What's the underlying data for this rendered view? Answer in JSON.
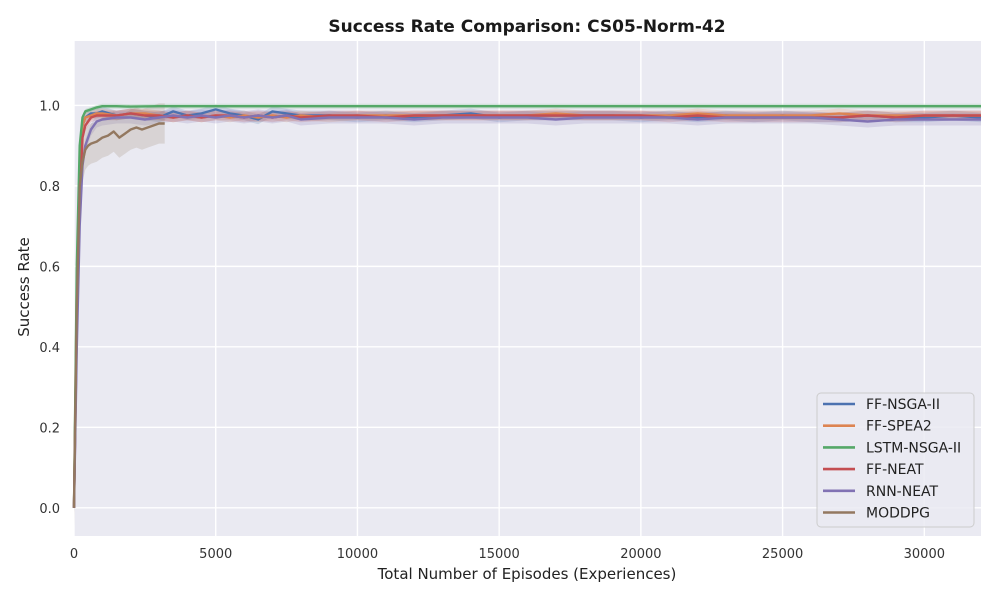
{
  "chart_data": {
    "type": "line",
    "title": "Success Rate Comparison: CS05-Norm-42",
    "xlabel": "Total Number of Episodes (Experiences)",
    "ylabel": "Success Rate",
    "xlim": [
      0,
      32000
    ],
    "ylim": [
      -0.07,
      1.16
    ],
    "xticks": [
      0,
      5000,
      10000,
      15000,
      20000,
      25000,
      30000
    ],
    "yticks": [
      0.0,
      0.2,
      0.4,
      0.6,
      0.8,
      1.0
    ],
    "xtick_labels": [
      "0",
      "5000",
      "10000",
      "15000",
      "20000",
      "25000",
      "30000"
    ],
    "ytick_labels": [
      "0.0",
      "0.2",
      "0.4",
      "0.6",
      "0.8",
      "1.0"
    ],
    "grid": true,
    "legend_position": "bottom-right",
    "series": [
      {
        "name": "FF-NSGA-II",
        "color": "#4c72b0",
        "x": [
          0,
          100,
          200,
          300,
          400,
          600,
          800,
          1000,
          1500,
          2000,
          2500,
          3000,
          3500,
          4000,
          4500,
          5000,
          5500,
          6000,
          6500,
          7000,
          7500,
          8000,
          9000,
          10000,
          11000,
          12000,
          13000,
          14000,
          15000,
          16000,
          17000,
          18000,
          19000,
          20000,
          21000,
          22000,
          23000,
          24000,
          25000,
          26000,
          27000,
          28000,
          29000,
          30000,
          31000,
          32000
        ],
        "y": [
          0.0,
          0.5,
          0.8,
          0.95,
          0.97,
          0.98,
          0.98,
          0.985,
          0.975,
          0.98,
          0.975,
          0.97,
          0.985,
          0.975,
          0.98,
          0.99,
          0.98,
          0.975,
          0.965,
          0.985,
          0.98,
          0.975,
          0.975,
          0.97,
          0.975,
          0.97,
          0.975,
          0.98,
          0.97,
          0.975,
          0.975,
          0.975,
          0.975,
          0.97,
          0.975,
          0.97,
          0.975,
          0.97,
          0.975,
          0.97,
          0.97,
          0.975,
          0.97,
          0.97,
          0.975,
          0.97
        ],
        "band": 0.012
      },
      {
        "name": "FF-SPEA2",
        "color": "#dd8452",
        "x": [
          0,
          100,
          200,
          300,
          400,
          600,
          800,
          1000,
          1500,
          2000,
          2500,
          3000,
          3500,
          4000,
          4500,
          5000,
          5500,
          6000,
          6500,
          7000,
          7500,
          8000,
          9000,
          10000,
          11000,
          12000,
          13000,
          14000,
          15000,
          16000,
          17000,
          18000,
          19000,
          20000,
          21000,
          22000,
          23000,
          24000,
          25000,
          26000,
          27000,
          28000,
          29000,
          30000,
          31000,
          32000
        ],
        "y": [
          0.0,
          0.55,
          0.85,
          0.95,
          0.97,
          0.975,
          0.98,
          0.98,
          0.975,
          0.98,
          0.98,
          0.975,
          0.97,
          0.975,
          0.97,
          0.975,
          0.97,
          0.975,
          0.97,
          0.975,
          0.97,
          0.975,
          0.97,
          0.975,
          0.975,
          0.975,
          0.975,
          0.975,
          0.975,
          0.975,
          0.98,
          0.975,
          0.975,
          0.975,
          0.975,
          0.98,
          0.975,
          0.975,
          0.975,
          0.975,
          0.98,
          0.975,
          0.975,
          0.975,
          0.975,
          0.975
        ],
        "band": 0.012
      },
      {
        "name": "LSTM-NSGA-II",
        "color": "#55a868",
        "x": [
          0,
          100,
          200,
          300,
          400,
          600,
          800,
          1000,
          1500,
          2000,
          3000,
          5000,
          10000,
          15000,
          20000,
          25000,
          30000,
          32000
        ],
        "y": [
          0.0,
          0.6,
          0.9,
          0.97,
          0.985,
          0.99,
          0.995,
          0.998,
          0.998,
          0.997,
          0.998,
          0.998,
          0.998,
          0.998,
          0.998,
          0.998,
          0.998,
          0.998
        ],
        "band": 0.006
      },
      {
        "name": "FF-NEAT",
        "color": "#c44e52",
        "x": [
          0,
          100,
          200,
          300,
          400,
          600,
          800,
          1000,
          1500,
          2000,
          2500,
          3000,
          3500,
          4000,
          4500,
          5000,
          5500,
          6000,
          6500,
          7000,
          7500,
          8000,
          9000,
          10000,
          11000,
          12000,
          13000,
          14000,
          15000,
          16000,
          17000,
          18000,
          19000,
          20000,
          21000,
          22000,
          23000,
          24000,
          25000,
          26000,
          27000,
          28000,
          29000,
          30000,
          31000,
          32000
        ],
        "y": [
          0.0,
          0.45,
          0.75,
          0.92,
          0.95,
          0.97,
          0.975,
          0.975,
          0.975,
          0.98,
          0.975,
          0.975,
          0.97,
          0.975,
          0.97,
          0.975,
          0.975,
          0.97,
          0.975,
          0.97,
          0.975,
          0.97,
          0.975,
          0.975,
          0.97,
          0.975,
          0.975,
          0.975,
          0.975,
          0.975,
          0.975,
          0.975,
          0.975,
          0.975,
          0.97,
          0.975,
          0.97,
          0.97,
          0.97,
          0.97,
          0.97,
          0.975,
          0.97,
          0.975,
          0.975,
          0.975
        ],
        "band": 0.012
      },
      {
        "name": "RNN-NEAT",
        "color": "#8172b3",
        "x": [
          0,
          100,
          200,
          300,
          400,
          600,
          800,
          1000,
          1500,
          2000,
          2500,
          3000,
          3500,
          4000,
          4500,
          5000,
          5500,
          6000,
          6500,
          7000,
          7500,
          8000,
          9000,
          10000,
          11000,
          12000,
          13000,
          14000,
          15000,
          16000,
          17000,
          18000,
          19000,
          20000,
          21000,
          22000,
          23000,
          24000,
          25000,
          26000,
          27000,
          28000,
          29000,
          30000,
          31000,
          32000
        ],
        "y": [
          0.0,
          0.4,
          0.7,
          0.85,
          0.9,
          0.94,
          0.96,
          0.965,
          0.97,
          0.97,
          0.965,
          0.97,
          0.975,
          0.97,
          0.975,
          0.97,
          0.975,
          0.97,
          0.975,
          0.97,
          0.975,
          0.965,
          0.97,
          0.97,
          0.97,
          0.965,
          0.97,
          0.97,
          0.97,
          0.97,
          0.965,
          0.97,
          0.97,
          0.97,
          0.97,
          0.965,
          0.97,
          0.97,
          0.97,
          0.97,
          0.965,
          0.96,
          0.965,
          0.965,
          0.965,
          0.965
        ],
        "band": 0.015
      },
      {
        "name": "MODDPG",
        "color": "#937860",
        "x": [
          0,
          100,
          200,
          300,
          400,
          500,
          600,
          800,
          1000,
          1200,
          1400,
          1600,
          1800,
          2000,
          2200,
          2400,
          2600,
          2800,
          3000,
          3200
        ],
        "y": [
          0.0,
          0.5,
          0.8,
          0.86,
          0.89,
          0.9,
          0.905,
          0.91,
          0.92,
          0.925,
          0.935,
          0.92,
          0.93,
          0.94,
          0.945,
          0.94,
          0.945,
          0.95,
          0.955,
          0.955
        ],
        "band": 0.05
      }
    ]
  }
}
